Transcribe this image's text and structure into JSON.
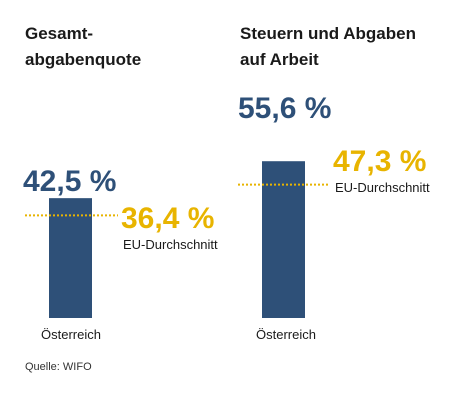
{
  "chart_data": [
    {
      "type": "bar",
      "title": "Gesamt-\nabgabenquote",
      "categories": [
        "Österreich"
      ],
      "values": [
        42.5
      ],
      "value_labels": [
        "42,5 %"
      ],
      "reference": {
        "name": "EU-Durchschnitt",
        "value": 36.4,
        "label": "36,4 %"
      },
      "ylim": [
        0,
        100
      ],
      "grid": false
    },
    {
      "type": "bar",
      "title": "Steuern und Abgaben\nauf Arbeit",
      "categories": [
        "Österreich"
      ],
      "values": [
        55.6
      ],
      "value_labels": [
        "55,6 %"
      ],
      "reference": {
        "name": "EU-Durchschnitt",
        "value": 47.3,
        "label": "47,3 %"
      },
      "ylim": [
        0,
        100
      ],
      "grid": false
    }
  ],
  "source": "Quelle: WIFO",
  "colors": {
    "bar": "#2e5078",
    "reference": "#e8b400",
    "text": "#1a1a1a"
  }
}
